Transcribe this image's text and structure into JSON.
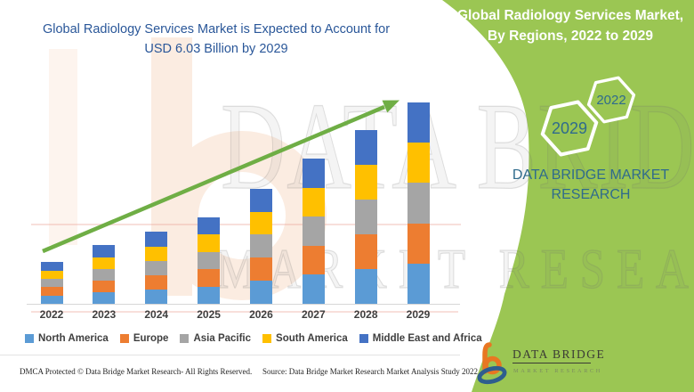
{
  "titles": {
    "chart_title_line1": "Global Radiology Services Market is Expected to Account for",
    "chart_title_line2": "USD 6.03 Billion by 2029",
    "banner_title_line1": "Global Radiology Services Market,",
    "banner_title_line2": "By Regions, 2022 to 2029"
  },
  "hexagons": {
    "back_year": "2029",
    "front_year": "2022"
  },
  "brand": {
    "wordmark_line1": "DATA BRIDGE MARKET",
    "wordmark_line2": "RESEARCH",
    "logo_name": "DATA BRIDGE",
    "logo_tagline": "MARKET RESEARCH"
  },
  "watermark": {
    "line1": "DATA BRIDGE",
    "line2": "MARKET RESEARCH"
  },
  "footer": {
    "dmca": "DMCA Protected © Data Bridge Market Research- All Rights Reserved.",
    "source": "Source: Data Bridge Market Research Market Analysis Study 2022"
  },
  "chart_data": {
    "type": "bar",
    "stacked": true,
    "unit": "USD Billion",
    "title": "Global Radiology Services Market, By Regions, 2022 to 2029",
    "categories": [
      "2022",
      "2023",
      "2024",
      "2025",
      "2026",
      "2027",
      "2028",
      "2029"
    ],
    "series": [
      {
        "name": "North America",
        "color": "#5B9BD5",
        "values": [
          0.25,
          0.35,
          0.43,
          0.52,
          0.69,
          0.87,
          1.04,
          1.206
        ]
      },
      {
        "name": "Europe",
        "color": "#ED7D31",
        "values": [
          0.25,
          0.35,
          0.43,
          0.52,
          0.69,
          0.87,
          1.04,
          1.206
        ]
      },
      {
        "name": "Asia Pacific",
        "color": "#A5A5A5",
        "values": [
          0.25,
          0.35,
          0.43,
          0.52,
          0.69,
          0.87,
          1.04,
          1.206
        ]
      },
      {
        "name": "South America",
        "color": "#FFC000",
        "values": [
          0.25,
          0.35,
          0.43,
          0.52,
          0.69,
          0.87,
          1.04,
          1.206
        ]
      },
      {
        "name": "Middle East and Africa",
        "color": "#4472C4",
        "values": [
          0.25,
          0.35,
          0.43,
          0.52,
          0.69,
          0.87,
          1.04,
          1.206
        ]
      }
    ],
    "totals_estimated": [
      1.25,
      1.75,
      2.15,
      2.6,
      3.45,
      4.35,
      5.2,
      6.03
    ],
    "highlight_value": "USD 6.03 Billion by 2029",
    "trend_arrow": true,
    "legend_position": "bottom",
    "gridlines": false,
    "ylim": [
      0,
      6.5
    ]
  },
  "colors": {
    "green_background": "#9BC653",
    "arrow_green": "#6FAE45",
    "title_blue": "#2A5799",
    "brand_blue": "#2F6B8C",
    "axis_text": "#3F3F3F",
    "logo_orange": "#E87722",
    "logo_blue": "#2E5E8E"
  }
}
